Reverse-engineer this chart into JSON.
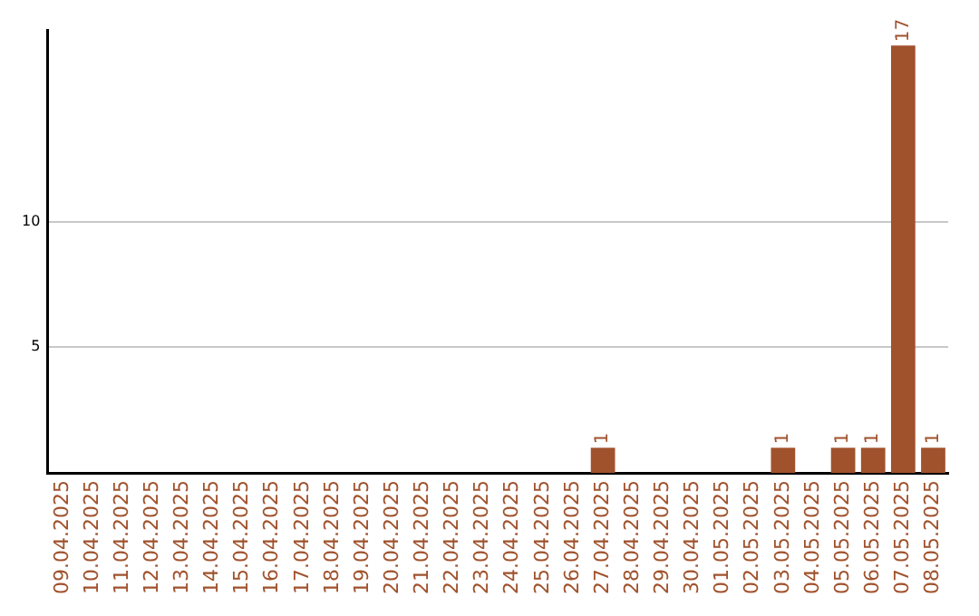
{
  "chart_data": {
    "type": "bar",
    "categories": [
      "09.04.2025",
      "10.04.2025",
      "11.04.2025",
      "12.04.2025",
      "13.04.2025",
      "14.04.2025",
      "15.04.2025",
      "16.04.2025",
      "17.04.2025",
      "18.04.2025",
      "19.04.2025",
      "20.04.2025",
      "21.04.2025",
      "22.04.2025",
      "23.04.2025",
      "24.04.2025",
      "25.04.2025",
      "26.04.2025",
      "27.04.2025",
      "28.04.2025",
      "29.04.2025",
      "30.04.2025",
      "01.05.2025",
      "02.05.2025",
      "03.05.2025",
      "04.05.2025",
      "05.05.2025",
      "06.05.2025",
      "07.05.2025",
      "08.05.2025"
    ],
    "values": [
      0,
      0,
      0,
      0,
      0,
      0,
      0,
      0,
      0,
      0,
      0,
      0,
      0,
      0,
      0,
      0,
      0,
      0,
      1,
      0,
      0,
      0,
      0,
      0,
      1,
      0,
      1,
      1,
      17,
      1
    ],
    "value_labels": [
      null,
      null,
      null,
      null,
      null,
      null,
      null,
      null,
      null,
      null,
      null,
      null,
      null,
      null,
      null,
      null,
      null,
      null,
      "1",
      null,
      null,
      null,
      null,
      null,
      "1",
      null,
      "1",
      "1",
      "17",
      "1"
    ],
    "color": "#a0522d",
    "ylim": [
      0,
      17.6
    ],
    "yticks": [
      5,
      10
    ],
    "grid": "y",
    "legend": false
  }
}
